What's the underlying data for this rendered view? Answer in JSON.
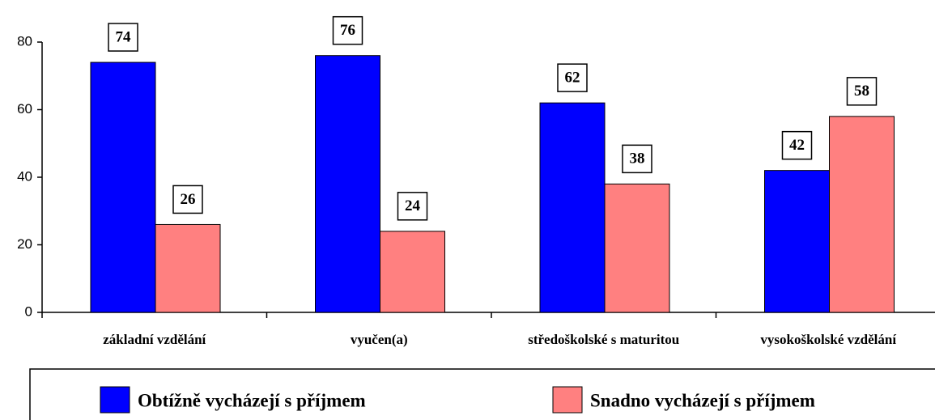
{
  "chart_data": {
    "type": "bar",
    "categories": [
      "základní vzdělání",
      "vyučen(a)",
      "středoškolské s maturitou",
      "vysokoškolské vzdělání"
    ],
    "series": [
      {
        "name": "Obtížně vycházejí s příjmem",
        "color": "#0000ff",
        "values": [
          74,
          76,
          62,
          42
        ]
      },
      {
        "name": "Snadno vycházejí s příjmem",
        "color": "#ff8080",
        "values": [
          26,
          24,
          38,
          58
        ]
      }
    ],
    "ylim": [
      0,
      80
    ],
    "yticks": [
      0,
      20,
      40,
      60,
      80
    ],
    "grid": false,
    "legend": "bottom"
  }
}
